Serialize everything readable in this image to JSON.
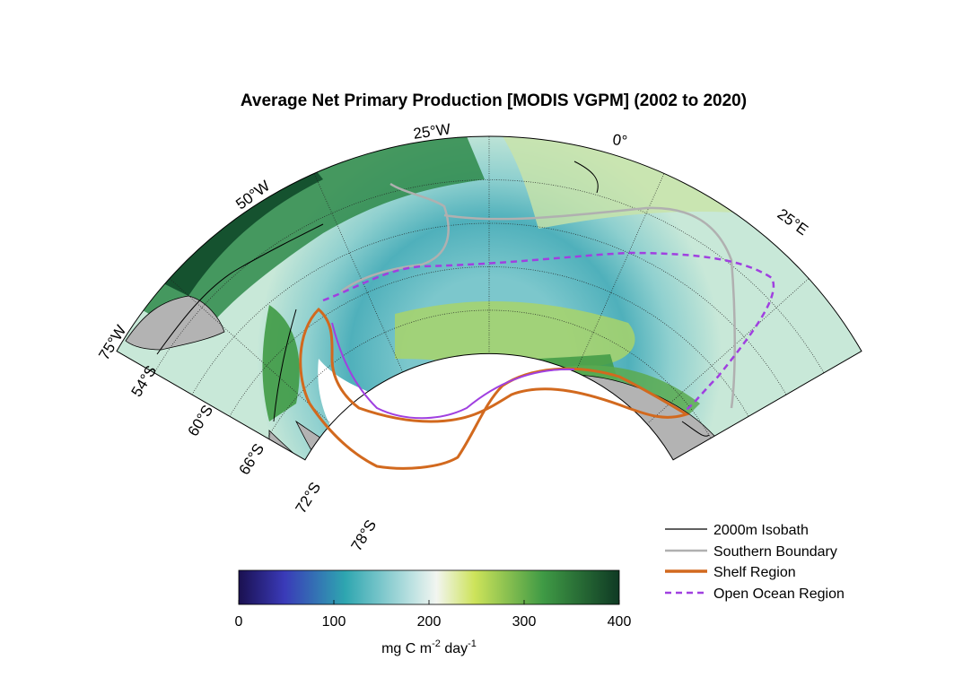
{
  "title": "Average Net Primary Production [MODIS VGPM] (2002 to 2020)",
  "meridian_labels": [
    "75°W",
    "50°W",
    "25°W",
    "0°",
    "25°E"
  ],
  "parallel_labels": [
    "54°S",
    "60°S",
    "66°S",
    "72°S",
    "78°S"
  ],
  "colorbar": {
    "ticks": [
      "0",
      "100",
      "200",
      "300",
      "400"
    ],
    "label_main": "mg C m",
    "label_sup1": "-2",
    "label_mid": " day",
    "label_sup2": "-1",
    "range": [
      0,
      400
    ],
    "colors": [
      "#1a1050",
      "#3a3ab8",
      "#2ea6b0",
      "#f2f5f0",
      "#cde35a",
      "#3f9a45",
      "#0f3a24"
    ]
  },
  "legend": {
    "position": "bottom-right",
    "items": [
      {
        "label": "2000m Isobath",
        "color": "#000000",
        "style": "solid-thin"
      },
      {
        "label": "Southern Boundary",
        "color": "#b0b0b0",
        "style": "solid"
      },
      {
        "label": "Shelf Region",
        "color": "#d2691e",
        "style": "solid-thick"
      },
      {
        "label": "Open Ocean Region",
        "color": "#a040e0",
        "style": "dashed"
      }
    ]
  },
  "colors": {
    "land": "#b3b3b3",
    "ice_shelf": "#ffffff",
    "isobath": "#000000",
    "southern_boundary": "#b0b0b0",
    "shelf_region": "#d2691e",
    "open_ocean_region": "#a040e0"
  }
}
